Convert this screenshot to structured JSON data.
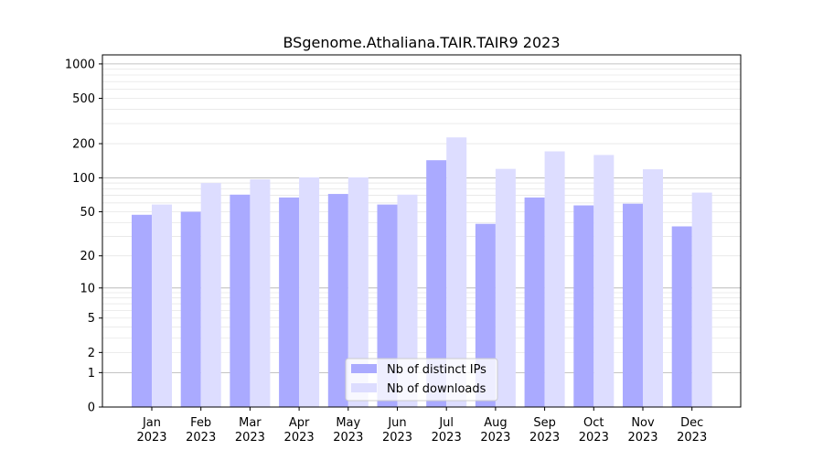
{
  "chart_data": {
    "type": "bar",
    "title": "BSgenome.Athaliana.TAIR.TAIR9 2023",
    "xlabel": "",
    "ylabel": "",
    "yscale": "log1p",
    "ylim": [
      0,
      1200
    ],
    "categories": [
      {
        "month": "Jan",
        "year": "2023"
      },
      {
        "month": "Feb",
        "year": "2023"
      },
      {
        "month": "Mar",
        "year": "2023"
      },
      {
        "month": "Apr",
        "year": "2023"
      },
      {
        "month": "May",
        "year": "2023"
      },
      {
        "month": "Jun",
        "year": "2023"
      },
      {
        "month": "Jul",
        "year": "2023"
      },
      {
        "month": "Aug",
        "year": "2023"
      },
      {
        "month": "Sep",
        "year": "2023"
      },
      {
        "month": "Oct",
        "year": "2023"
      },
      {
        "month": "Nov",
        "year": "2023"
      },
      {
        "month": "Dec",
        "year": "2023"
      }
    ],
    "yticks": [
      {
        "value": 0,
        "label": "0",
        "major": true
      },
      {
        "value": 1,
        "label": "1",
        "major": true
      },
      {
        "value": 2,
        "label": "2",
        "major": false
      },
      {
        "value": 5,
        "label": "5",
        "major": false
      },
      {
        "value": 10,
        "label": "10",
        "major": true
      },
      {
        "value": 20,
        "label": "20",
        "major": false
      },
      {
        "value": 50,
        "label": "50",
        "major": false
      },
      {
        "value": 100,
        "label": "100",
        "major": true
      },
      {
        "value": 200,
        "label": "200",
        "major": false
      },
      {
        "value": 500,
        "label": "500",
        "major": false
      },
      {
        "value": 1000,
        "label": "1000",
        "major": true
      }
    ],
    "series": [
      {
        "name": "Nb of distinct IPs",
        "color": "#aaaaff",
        "values": [
          47,
          50,
          71,
          67,
          72,
          58,
          143,
          39,
          67,
          57,
          59,
          37
        ]
      },
      {
        "name": "Nb of downloads",
        "color": "#ddddff",
        "values": [
          58,
          90,
          97,
          101,
          101,
          71,
          227,
          120,
          171,
          159,
          119,
          74
        ]
      }
    ],
    "legend": {
      "position": "bottom-center"
    },
    "grid": true
  }
}
